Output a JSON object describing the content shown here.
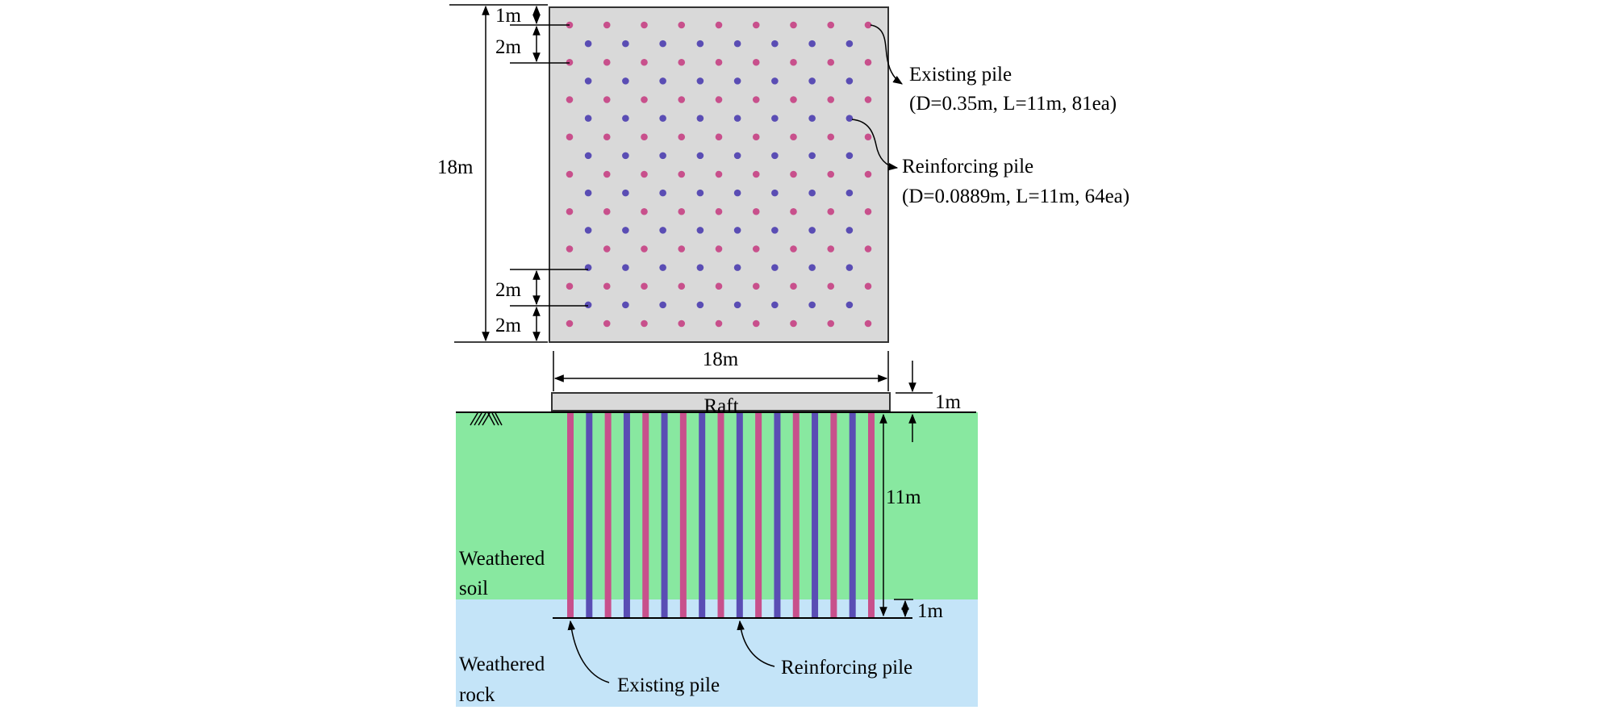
{
  "colors": {
    "existing_pile": "#c8508c",
    "reinforcing_pile": "#5a4db4",
    "raft": "#d9d9d9",
    "weathered_soil": "#88e8a0",
    "weathered_rock": "#c4e4f8"
  },
  "plan": {
    "dim_total_vertical": "18m",
    "dim_top_1m": "1m",
    "dim_top_2m": "2m",
    "dim_bottom_2m_a": "2m",
    "dim_bottom_2m_b": "2m",
    "dim_width": "18m",
    "existing_label_line1": "Existing pile",
    "existing_label_line2": "(D=0.35m, L=11m, 81ea)",
    "reinforcing_label_line1": "Reinforcing pile",
    "reinforcing_label_line2": "(D=0.0889m, L=11m, 64ea)",
    "existing_grid": [
      9,
      9
    ],
    "reinforcing_grid": [
      8,
      8
    ]
  },
  "section": {
    "raft_label": "Raft",
    "dim_raft_thickness": "1m",
    "dim_pile_length": "11m",
    "dim_embedment": "1m",
    "soil_label_line1": "Weathered",
    "soil_label_line2": "soil",
    "rock_label_line1": "Weathered",
    "rock_label_line2": "rock",
    "existing_pile_label": "Existing pile",
    "reinforcing_pile_label": "Reinforcing pile",
    "pile_count": 17
  }
}
